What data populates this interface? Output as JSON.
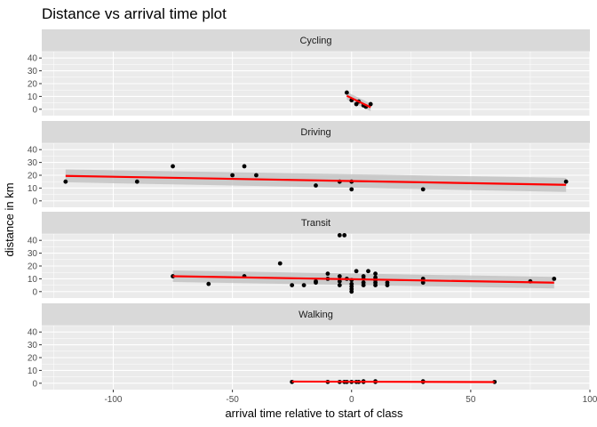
{
  "chart_data": {
    "type": "scatter",
    "title": "Distance vs arrival time plot",
    "xlabel": "arrival time relative to start of class",
    "ylabel": "distance in km",
    "xlim": [
      -130,
      100
    ],
    "ylim": [
      -5,
      45
    ],
    "x_ticks": [
      -100,
      -50,
      0,
      50,
      100
    ],
    "y_ticks": [
      0,
      10,
      20,
      30,
      40
    ],
    "grid": true,
    "smoother": {
      "method": "linear",
      "color": "#ff0000",
      "band_color": "#bebebe"
    },
    "colors": {
      "panel_bg": "#ebebeb",
      "strip_bg": "#d9d9d9",
      "grid": "#ffffff",
      "points": "#000000"
    },
    "panels": [
      {
        "label": "Cycling",
        "points": [
          [
            -2,
            13
          ],
          [
            0,
            7
          ],
          [
            2,
            4
          ],
          [
            3,
            6
          ],
          [
            5,
            3
          ],
          [
            6,
            2
          ],
          [
            8,
            4
          ]
        ],
        "fit": {
          "x": [
            -2,
            8
          ],
          "y": [
            10.5,
            1.5
          ]
        },
        "band": {
          "upper": [
            13.5,
            4.5
          ],
          "lower": [
            7.5,
            -1.5
          ]
        }
      },
      {
        "label": "Driving",
        "points": [
          [
            -120,
            15
          ],
          [
            -90,
            15
          ],
          [
            -75,
            27
          ],
          [
            -50,
            20
          ],
          [
            -45,
            27
          ],
          [
            -40,
            20
          ],
          [
            -15,
            12
          ],
          [
            -5,
            15
          ],
          [
            0,
            15
          ],
          [
            0,
            9
          ],
          [
            30,
            9
          ],
          [
            90,
            15
          ]
        ],
        "fit": {
          "x": [
            -120,
            90
          ],
          "y": [
            19.5,
            12.5
          ]
        },
        "band": {
          "upper": [
            24.5,
            18
          ],
          "lower": [
            14.5,
            7
          ]
        }
      },
      {
        "label": "Transit",
        "points": [
          [
            -75,
            12
          ],
          [
            -60,
            6
          ],
          [
            -45,
            12
          ],
          [
            -30,
            22
          ],
          [
            -25,
            5
          ],
          [
            -20,
            5
          ],
          [
            -15,
            7
          ],
          [
            -15,
            8
          ],
          [
            -10,
            10
          ],
          [
            -10,
            14
          ],
          [
            -5,
            5
          ],
          [
            -5,
            8
          ],
          [
            -5,
            12
          ],
          [
            -5,
            44
          ],
          [
            -3,
            44
          ],
          [
            -2,
            10
          ],
          [
            0,
            0
          ],
          [
            0,
            2
          ],
          [
            0,
            4
          ],
          [
            0,
            6
          ],
          [
            0,
            9
          ],
          [
            2,
            16
          ],
          [
            5,
            5
          ],
          [
            5,
            7
          ],
          [
            5,
            10
          ],
          [
            5,
            12
          ],
          [
            7,
            16
          ],
          [
            10,
            5
          ],
          [
            10,
            7
          ],
          [
            10,
            9
          ],
          [
            10,
            11
          ],
          [
            10,
            14
          ],
          [
            15,
            5
          ],
          [
            15,
            7
          ],
          [
            30,
            7
          ],
          [
            30,
            10
          ],
          [
            75,
            8
          ],
          [
            85,
            10
          ]
        ],
        "fit": {
          "x": [
            -75,
            85
          ],
          "y": [
            12,
            7
          ]
        },
        "band": {
          "upper": [
            16.5,
            11.5
          ],
          "lower": [
            7.5,
            2.5
          ]
        }
      },
      {
        "label": "Walking",
        "points": [
          [
            -25,
            1
          ],
          [
            -10,
            1
          ],
          [
            -5,
            1
          ],
          [
            -3,
            1
          ],
          [
            -2,
            1
          ],
          [
            0,
            1
          ],
          [
            2,
            1
          ],
          [
            3,
            1
          ],
          [
            5,
            1
          ],
          [
            5,
            1.5
          ],
          [
            10,
            1
          ],
          [
            10,
            1.5
          ],
          [
            30,
            1
          ],
          [
            30,
            1.5
          ],
          [
            60,
            1
          ]
        ],
        "fit": {
          "x": [
            -25,
            60
          ],
          "y": [
            1.3,
            0.9
          ]
        },
        "band": {
          "upper": [
            1.7,
            1.3
          ],
          "lower": [
            0.9,
            0.5
          ]
        }
      }
    ]
  }
}
